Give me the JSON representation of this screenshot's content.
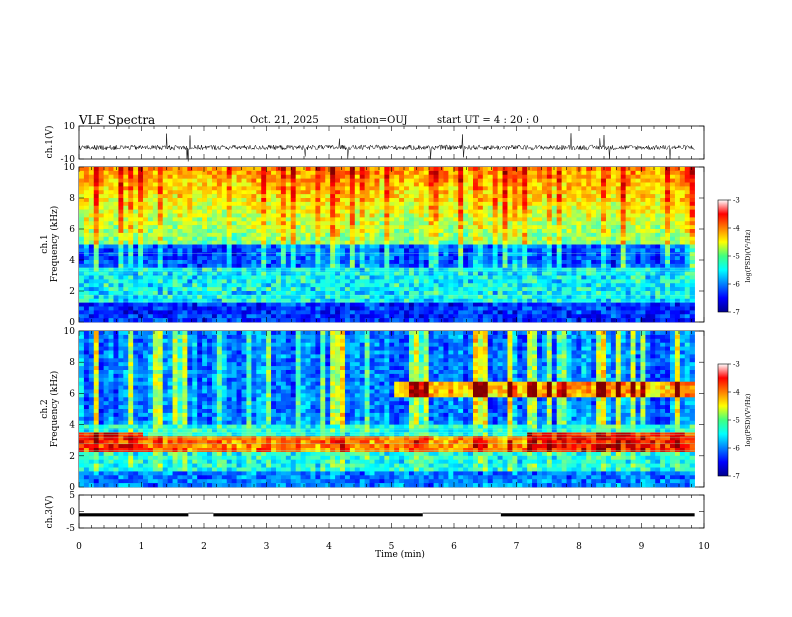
{
  "header": {
    "title": "VLF Spectra",
    "date": "Oct. 21, 2025",
    "station": "station=OUJ",
    "start": "start  UT  =   4  : 20 : 0"
  },
  "chart_data": [
    {
      "type": "line",
      "name": "ch1-waveform",
      "ylabel": "ch.1(V)",
      "ylim": [
        -10,
        10
      ],
      "yticks": [
        "10",
        "-10"
      ],
      "baseline": -3
    },
    {
      "type": "heatmap",
      "name": "ch1-spectrogram",
      "ylabel": "ch.1",
      "ylabel2": "Frequency (kHz)",
      "ylim": [
        0,
        10
      ],
      "yticks": [
        "10",
        "8",
        "6",
        "4",
        "2",
        "0"
      ],
      "colorbar": {
        "ticks": [
          "-3",
          "-4",
          "-5",
          "-6",
          "-7"
        ],
        "label": "log(PSD)(V²/Hz)",
        "range": [
          -7,
          -3
        ]
      }
    },
    {
      "type": "heatmap",
      "name": "ch2-spectrogram",
      "ylabel": "ch.2",
      "ylabel2": "Frequency (kHz)",
      "ylim": [
        0,
        10
      ],
      "yticks": [
        "10",
        "8",
        "6",
        "4",
        "2",
        "0"
      ],
      "colorbar": {
        "ticks": [
          "-3",
          "-4",
          "-5",
          "-6",
          "-7"
        ],
        "label": "log(PSD)(V²/Hz)",
        "range": [
          -7,
          -3
        ]
      }
    },
    {
      "type": "line",
      "name": "ch3-level",
      "ylabel": "ch.3(V)",
      "ylim": [
        -5,
        5
      ],
      "yticks": [
        "5",
        "0",
        "-5"
      ],
      "segments": [
        {
          "x": [
            0,
            1.75
          ],
          "y": -1.0
        },
        {
          "x": [
            1.75,
            2.15
          ],
          "y": -0.5
        },
        {
          "x": [
            2.15,
            5.5
          ],
          "y": -1.0
        },
        {
          "x": [
            5.5,
            6.75
          ],
          "y": -0.5
        },
        {
          "x": [
            6.75,
            9.85
          ],
          "y": -1.0
        }
      ]
    }
  ],
  "xaxis": {
    "label": "Time  (min)",
    "xlim": [
      0,
      10
    ],
    "ticks": [
      "0",
      "1",
      "2",
      "3",
      "4",
      "5",
      "6",
      "7",
      "8",
      "9",
      "10"
    ],
    "data_end": 9.85
  }
}
